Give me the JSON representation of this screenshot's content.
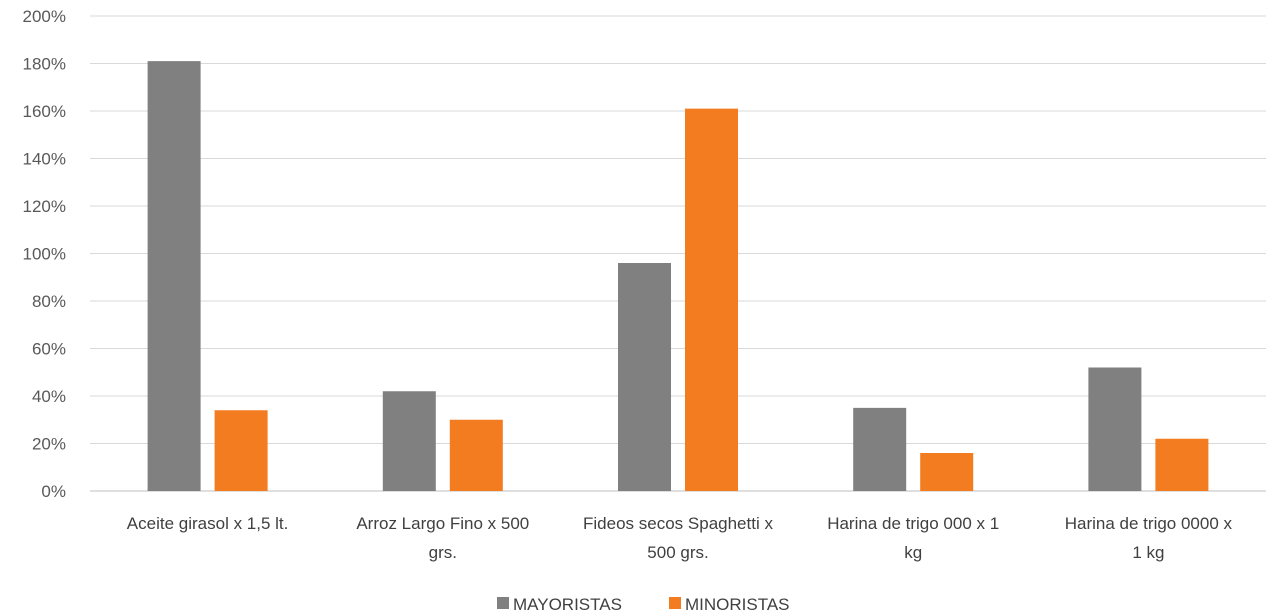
{
  "chart_data": {
    "type": "bar",
    "categories": [
      [
        "Aceite girasol x 1,5 lt."
      ],
      [
        "Arroz Largo Fino x 500",
        "grs."
      ],
      [
        "Fideos secos Spaghetti x",
        "500 grs."
      ],
      [
        "Harina de trigo 000 x 1",
        "kg"
      ],
      [
        "Harina de trigo 0000 x",
        "1 kg"
      ]
    ],
    "series": [
      {
        "name": "MAYORISTAS",
        "color": "#808080",
        "values": [
          181,
          42,
          96,
          35,
          52
        ]
      },
      {
        "name": "MINORISTAS",
        "color": "#f47c20",
        "values": [
          34,
          30,
          161,
          16,
          22
        ]
      }
    ],
    "yticks": [
      "0%",
      "20%",
      "40%",
      "60%",
      "80%",
      "100%",
      "120%",
      "140%",
      "160%",
      "180%",
      "200%"
    ],
    "ylim": [
      0,
      200
    ],
    "grid": true,
    "legend": "bottom"
  }
}
